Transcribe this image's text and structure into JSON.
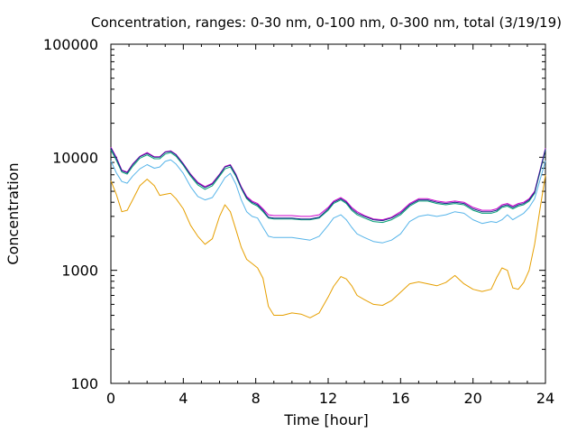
{
  "chart_data": {
    "type": "line",
    "title": "Concentration, ranges: 0-30 nm, 0-100 nm, 0-300 nm, total (3/19/19)",
    "xlabel": "Time [hour]",
    "ylabel": "Concentration",
    "xlim": [
      0,
      24
    ],
    "ylim": [
      100,
      100000
    ],
    "y_scale": "log",
    "grid": false,
    "legend": "none",
    "x_ticks": [
      "0",
      "4",
      "8",
      "12",
      "16",
      "20",
      "24"
    ],
    "y_ticks": [
      "100",
      "1000",
      "10000",
      "100000"
    ],
    "series": [
      {
        "color": "#e69f00",
        "x": [
          0,
          0.3,
          0.6,
          0.9,
          1.2,
          1.6,
          2.0,
          2.4,
          2.7,
          3.0,
          3.3,
          3.6,
          4.0,
          4.4,
          4.8,
          5.2,
          5.6,
          6.0,
          6.3,
          6.6,
          6.9,
          7.2,
          7.5,
          7.8,
          8.1,
          8.4,
          8.7,
          9.0,
          9.5,
          10.0,
          10.5,
          11.0,
          11.5,
          12.0,
          12.3,
          12.7,
          13.0,
          13.3,
          13.6,
          14.0,
          14.5,
          15.0,
          15.5,
          16.0,
          16.5,
          17.0,
          17.5,
          18.0,
          18.5,
          19.0,
          19.5,
          20.0,
          20.5,
          21.0,
          21.3,
          21.6,
          21.9,
          22.2,
          22.5,
          22.8,
          23.1,
          23.4,
          23.7,
          24.0
        ],
        "y": [
          6200,
          4700,
          3300,
          3400,
          4200,
          5600,
          6400,
          5600,
          4600,
          4700,
          4800,
          4300,
          3500,
          2500,
          2000,
          1700,
          1900,
          3000,
          3800,
          3300,
          2300,
          1600,
          1250,
          1150,
          1050,
          850,
          480,
          400,
          400,
          420,
          410,
          380,
          420,
          580,
          720,
          880,
          840,
          730,
          600,
          550,
          500,
          490,
          540,
          640,
          760,
          790,
          760,
          730,
          780,
          900,
          760,
          680,
          650,
          680,
          860,
          1050,
          1000,
          700,
          680,
          780,
          1000,
          1700,
          3500,
          7000
        ]
      },
      {
        "color": "#56b4e9",
        "x": [
          0,
          0.3,
          0.6,
          0.9,
          1.2,
          1.6,
          2.0,
          2.4,
          2.7,
          3.0,
          3.3,
          3.6,
          4.0,
          4.4,
          4.8,
          5.2,
          5.6,
          6.0,
          6.3,
          6.6,
          6.9,
          7.2,
          7.5,
          7.8,
          8.1,
          8.4,
          8.7,
          9.0,
          9.5,
          10.0,
          10.5,
          11.0,
          11.5,
          12.0,
          12.3,
          12.7,
          13.0,
          13.3,
          13.6,
          14.0,
          14.5,
          15.0,
          15.5,
          16.0,
          16.5,
          17.0,
          17.5,
          18.0,
          18.5,
          19.0,
          19.5,
          20.0,
          20.5,
          21.0,
          21.3,
          21.6,
          21.9,
          22.2,
          22.5,
          22.8,
          23.1,
          23.4,
          23.7,
          24.0
        ],
        "y": [
          9300,
          7300,
          6100,
          5900,
          6800,
          7900,
          8600,
          8000,
          8200,
          9200,
          9500,
          8700,
          7200,
          5500,
          4500,
          4200,
          4400,
          5500,
          6600,
          7200,
          5800,
          4200,
          3300,
          3000,
          2900,
          2400,
          2000,
          1950,
          1950,
          1950,
          1900,
          1850,
          2000,
          2500,
          2900,
          3100,
          2800,
          2400,
          2100,
          1950,
          1800,
          1750,
          1850,
          2100,
          2700,
          3000,
          3100,
          3000,
          3100,
          3300,
          3200,
          2800,
          2600,
          2700,
          2650,
          2800,
          3100,
          2800,
          3000,
          3200,
          3600,
          4300,
          6300,
          9300
        ]
      },
      {
        "color": "#009e73",
        "x": [
          0,
          0.3,
          0.6,
          0.9,
          1.2,
          1.6,
          2.0,
          2.4,
          2.7,
          3.0,
          3.3,
          3.6,
          4.0,
          4.4,
          4.8,
          5.2,
          5.6,
          6.0,
          6.3,
          6.6,
          6.9,
          7.2,
          7.5,
          7.8,
          8.1,
          8.4,
          8.7,
          9.0,
          9.5,
          10.0,
          10.5,
          11.0,
          11.5,
          12.0,
          12.3,
          12.7,
          13.0,
          13.3,
          13.6,
          14.0,
          14.5,
          15.0,
          15.5,
          16.0,
          16.5,
          17.0,
          17.5,
          18.0,
          18.5,
          19.0,
          19.5,
          20.0,
          20.5,
          21.0,
          21.3,
          21.6,
          21.9,
          22.2,
          22.5,
          22.8,
          23.1,
          23.4,
          23.7,
          24.0
        ],
        "y": [
          11600,
          9400,
          7400,
          7100,
          8300,
          9800,
          10500,
          9700,
          9700,
          10700,
          11000,
          10200,
          8500,
          6800,
          5700,
          5200,
          5600,
          6800,
          7900,
          8200,
          6800,
          5300,
          4300,
          3900,
          3700,
          3300,
          2900,
          2850,
          2850,
          2850,
          2800,
          2800,
          2900,
          3400,
          3900,
          4200,
          3900,
          3400,
          3100,
          2900,
          2700,
          2650,
          2800,
          3100,
          3700,
          4100,
          4100,
          3900,
          3800,
          3900,
          3800,
          3400,
          3200,
          3200,
          3300,
          3600,
          3700,
          3500,
          3700,
          3800,
          4100,
          4800,
          7400,
          11600
        ]
      },
      {
        "color": "#cc00cc",
        "x": [
          0,
          0.3,
          0.6,
          0.9,
          1.2,
          1.6,
          2.0,
          2.4,
          2.7,
          3.0,
          3.3,
          3.6,
          4.0,
          4.4,
          4.8,
          5.2,
          5.6,
          6.0,
          6.3,
          6.6,
          6.9,
          7.2,
          7.5,
          7.8,
          8.1,
          8.4,
          8.7,
          9.0,
          9.5,
          10.0,
          10.5,
          11.0,
          11.5,
          12.0,
          12.3,
          12.7,
          13.0,
          13.3,
          13.6,
          14.0,
          14.5,
          15.0,
          15.5,
          16.0,
          16.5,
          17.0,
          17.5,
          18.0,
          18.5,
          19.0,
          19.5,
          20.0,
          20.5,
          21.0,
          21.3,
          21.6,
          21.9,
          22.2,
          22.5,
          22.8,
          23.1,
          23.4,
          23.7,
          24.0
        ],
        "y": [
          12300,
          10000,
          7700,
          7400,
          8700,
          10200,
          11000,
          10100,
          10100,
          11200,
          11400,
          10600,
          8800,
          7100,
          6000,
          5500,
          5900,
          7100,
          8300,
          8600,
          7100,
          5500,
          4500,
          4100,
          3900,
          3500,
          3100,
          3050,
          3050,
          3050,
          3000,
          3000,
          3100,
          3600,
          4100,
          4400,
          4100,
          3600,
          3300,
          3050,
          2850,
          2800,
          2950,
          3300,
          3900,
          4300,
          4300,
          4100,
          4000,
          4100,
          4000,
          3600,
          3400,
          3400,
          3500,
          3800,
          3900,
          3700,
          3900,
          4000,
          4300,
          5000,
          7700,
          12000
        ]
      },
      {
        "color": "#1f2a8a",
        "x": [
          0,
          0.3,
          0.6,
          0.9,
          1.2,
          1.6,
          2.0,
          2.4,
          2.7,
          3.0,
          3.3,
          3.6,
          4.0,
          4.4,
          4.8,
          5.2,
          5.6,
          6.0,
          6.3,
          6.6,
          6.9,
          7.2,
          7.5,
          7.8,
          8.1,
          8.4,
          8.7,
          9.0,
          9.5,
          10.0,
          10.5,
          11.0,
          11.5,
          12.0,
          12.3,
          12.7,
          13.0,
          13.3,
          13.6,
          14.0,
          14.5,
          15.0,
          15.5,
          16.0,
          16.5,
          17.0,
          17.5,
          18.0,
          18.5,
          19.0,
          19.5,
          20.0,
          20.5,
          21.0,
          21.3,
          21.6,
          21.9,
          22.2,
          22.5,
          22.8,
          23.1,
          23.4,
          23.7,
          24.0
        ],
        "y": [
          12100,
          9800,
          7600,
          7300,
          8600,
          10100,
          10800,
          10000,
          10000,
          11100,
          11300,
          10500,
          8700,
          7000,
          5900,
          5400,
          5800,
          7000,
          8200,
          8500,
          7000,
          5400,
          4400,
          4000,
          3800,
          3400,
          2950,
          2900,
          2900,
          2900,
          2850,
          2850,
          2950,
          3500,
          4000,
          4300,
          4000,
          3500,
          3200,
          3000,
          2800,
          2750,
          2900,
          3200,
          3800,
          4200,
          4200,
          4000,
          3900,
          4000,
          3900,
          3500,
          3300,
          3300,
          3400,
          3700,
          3800,
          3600,
          3800,
          3900,
          4200,
          4900,
          7600,
          11800
        ]
      }
    ]
  }
}
